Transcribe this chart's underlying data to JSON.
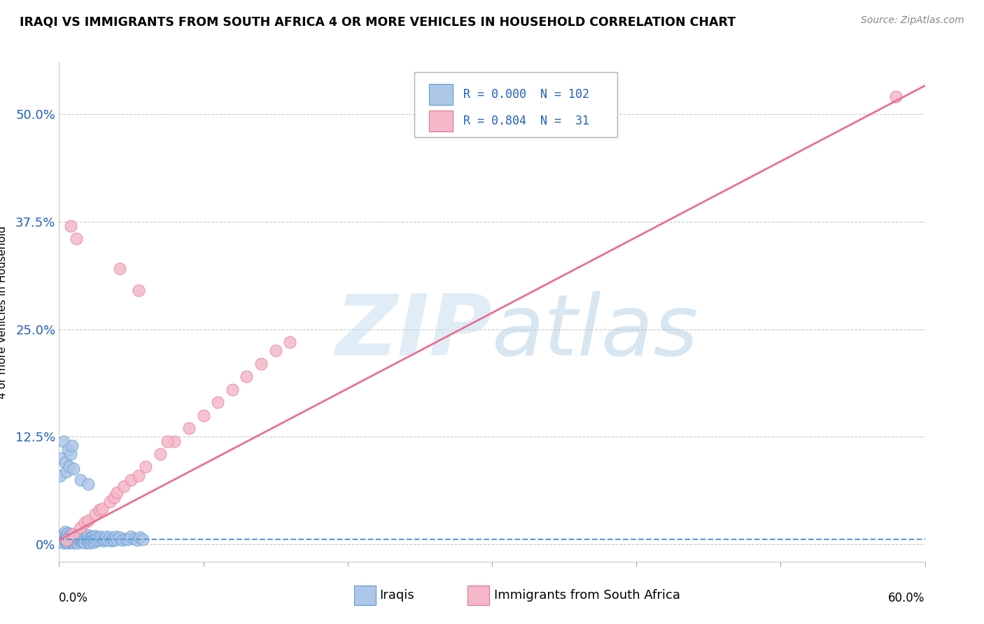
{
  "title": "IRAQI VS IMMIGRANTS FROM SOUTH AFRICA 4 OR MORE VEHICLES IN HOUSEHOLD CORRELATION CHART",
  "source": "Source: ZipAtlas.com",
  "ylabel": "4 or more Vehicles in Household",
  "ytick_vals": [
    0.0,
    0.125,
    0.25,
    0.375,
    0.5
  ],
  "ytick_labels": [
    "0%",
    "12.5%",
    "25.0%",
    "37.5%",
    "50.0%"
  ],
  "xlim": [
    0.0,
    0.6
  ],
  "ylim": [
    -0.02,
    0.56
  ],
  "legend_r_iraqis": "0.000",
  "legend_n_iraqis": "102",
  "legend_r_sa": "0.804",
  "legend_n_sa": " 31",
  "color_iraqis_fill": "#aec6e8",
  "color_iraqis_edge": "#5b9bd5",
  "color_sa_fill": "#f4b8c8",
  "color_sa_edge": "#e87090",
  "color_iraqis_line": "#5b9bd5",
  "color_sa_line": "#e87090",
  "color_text_blue": "#2060c0",
  "color_grid": "#c8c8c8",
  "iraqis_x": [
    0.001,
    0.002,
    0.002,
    0.003,
    0.003,
    0.003,
    0.004,
    0.004,
    0.004,
    0.005,
    0.005,
    0.005,
    0.005,
    0.006,
    0.006,
    0.006,
    0.007,
    0.007,
    0.007,
    0.007,
    0.008,
    0.008,
    0.008,
    0.008,
    0.009,
    0.009,
    0.009,
    0.01,
    0.01,
    0.01,
    0.01,
    0.011,
    0.011,
    0.011,
    0.012,
    0.012,
    0.012,
    0.013,
    0.013,
    0.013,
    0.014,
    0.014,
    0.015,
    0.015,
    0.015,
    0.016,
    0.016,
    0.017,
    0.017,
    0.018,
    0.018,
    0.019,
    0.019,
    0.02,
    0.02,
    0.02,
    0.021,
    0.021,
    0.022,
    0.022,
    0.023,
    0.023,
    0.024,
    0.024,
    0.025,
    0.025,
    0.026,
    0.027,
    0.028,
    0.029,
    0.03,
    0.031,
    0.032,
    0.033,
    0.034,
    0.035,
    0.036,
    0.037,
    0.038,
    0.039,
    0.04,
    0.042,
    0.044,
    0.046,
    0.048,
    0.05,
    0.052,
    0.054,
    0.056,
    0.058,
    0.001,
    0.002,
    0.003,
    0.004,
    0.005,
    0.006,
    0.007,
    0.008,
    0.009,
    0.01,
    0.015,
    0.02
  ],
  "iraqis_y": [
    0.005,
    0.01,
    0.003,
    0.008,
    0.002,
    0.012,
    0.006,
    0.015,
    0.004,
    0.009,
    0.003,
    0.011,
    0.007,
    0.005,
    0.013,
    0.002,
    0.008,
    0.004,
    0.01,
    0.006,
    0.003,
    0.009,
    0.005,
    0.012,
    0.007,
    0.003,
    0.01,
    0.006,
    0.002,
    0.008,
    0.004,
    0.009,
    0.005,
    0.011,
    0.007,
    0.003,
    0.01,
    0.006,
    0.002,
    0.008,
    0.005,
    0.009,
    0.004,
    0.007,
    0.011,
    0.005,
    0.008,
    0.003,
    0.01,
    0.006,
    0.002,
    0.009,
    0.005,
    0.007,
    0.003,
    0.011,
    0.006,
    0.002,
    0.008,
    0.004,
    0.009,
    0.005,
    0.007,
    0.003,
    0.01,
    0.006,
    0.004,
    0.008,
    0.005,
    0.009,
    0.007,
    0.004,
    0.006,
    0.009,
    0.005,
    0.008,
    0.004,
    0.007,
    0.005,
    0.009,
    0.006,
    0.008,
    0.005,
    0.007,
    0.006,
    0.009,
    0.007,
    0.005,
    0.008,
    0.006,
    0.08,
    0.1,
    0.12,
    0.095,
    0.085,
    0.11,
    0.09,
    0.105,
    0.115,
    0.088,
    0.075,
    0.07
  ],
  "sa_x": [
    0.005,
    0.01,
    0.015,
    0.018,
    0.02,
    0.025,
    0.028,
    0.03,
    0.035,
    0.038,
    0.04,
    0.045,
    0.05,
    0.055,
    0.06,
    0.07,
    0.08,
    0.09,
    0.1,
    0.11,
    0.12,
    0.13,
    0.14,
    0.15,
    0.16,
    0.055,
    0.042,
    0.075,
    0.008,
    0.012,
    0.58
  ],
  "sa_y": [
    0.005,
    0.012,
    0.02,
    0.025,
    0.028,
    0.035,
    0.04,
    0.042,
    0.05,
    0.055,
    0.06,
    0.068,
    0.075,
    0.08,
    0.09,
    0.105,
    0.12,
    0.135,
    0.15,
    0.165,
    0.18,
    0.195,
    0.21,
    0.225,
    0.235,
    0.295,
    0.32,
    0.12,
    0.37,
    0.355,
    0.52
  ],
  "iraqis_trendline_y": 0.006,
  "sa_trendline_slope": 0.88,
  "sa_trendline_intercept": 0.005
}
